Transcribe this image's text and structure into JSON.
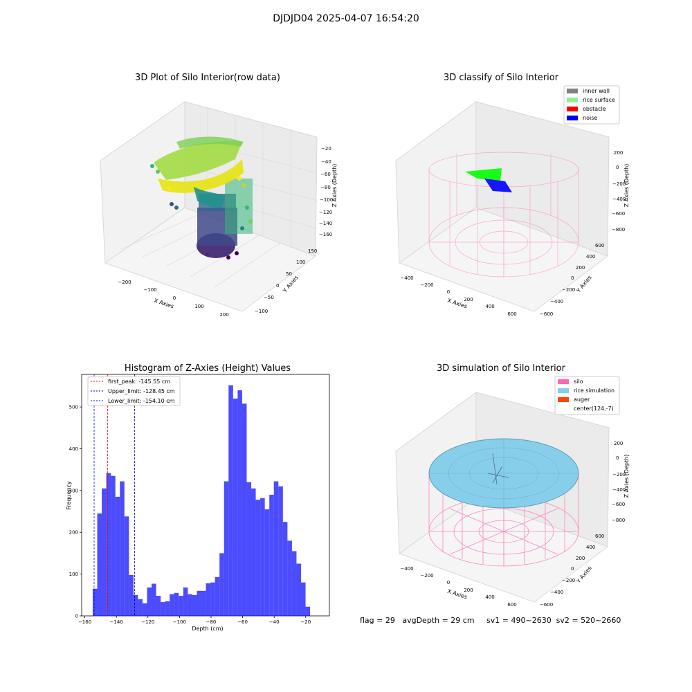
{
  "figure": {
    "suptitle": "DJDJD04 2025-04-07 16:54:20"
  },
  "panel_rowdata": {
    "title": "3D Plot of Silo Interior(row data)",
    "xlabel": "X Axies",
    "ylabel": "Y Axies",
    "zlabel": "Z Axies (Depth)",
    "xticks": [
      "−200",
      "−100",
      "0",
      "100",
      "200"
    ],
    "yticks": [
      "−100",
      "−50",
      "0",
      "50",
      "100",
      "150"
    ],
    "zticks": [
      "−20",
      "−40",
      "−60",
      "−80",
      "−100",
      "−120",
      "−140",
      "−160"
    ]
  },
  "panel_classify": {
    "title": "3D classify of Silo Interior",
    "xlabel": "X Axies",
    "ylabel": "Y Axies",
    "zlabel": "Z Axies (Depth)",
    "xticks": [
      "−400",
      "−200",
      "0",
      "200",
      "400",
      "600"
    ],
    "yticks": [
      "−600",
      "−400",
      "−200",
      "0",
      "200",
      "400",
      "600"
    ],
    "zticks": [
      "200",
      "0",
      "−200",
      "−400",
      "−600",
      "−800"
    ],
    "legend": [
      {
        "label": "inner wall",
        "color": "#808080"
      },
      {
        "label": "rice surface",
        "color": "#90ee90"
      },
      {
        "label": "obstacle",
        "color": "#ff0000"
      },
      {
        "label": "noise",
        "color": "#0000ff"
      }
    ]
  },
  "panel_simulation": {
    "title": "3D simulation of Silo Interior",
    "xlabel": "X Axies",
    "ylabel": "Y Axies",
    "zlabel": "Z Axies (Depth)",
    "xticks": [
      "−400",
      "−200",
      "0",
      "200",
      "400",
      "600"
    ],
    "yticks": [
      "−600",
      "−400",
      "−200",
      "0",
      "200",
      "400",
      "600"
    ],
    "zticks": [
      "200",
      "0",
      "−200",
      "−400",
      "−600",
      "−800"
    ],
    "legend": [
      {
        "label": "silo",
        "color": "#ff69b4"
      },
      {
        "label": "rice simulation",
        "color": "#87ceeb"
      },
      {
        "label": "auger",
        "color": "#ff4500"
      },
      {
        "label": "center(124,-7)",
        "color": "none"
      }
    ]
  },
  "status": {
    "text": "flag = 29   avgDepth = 29 cm     sv1 = 490~2630  sv2 = 520~2660"
  },
  "colors": {
    "bar": "#0000ff",
    "wire": "#ff69b4",
    "rice": "#87ceeb",
    "surface": "#00ff00",
    "noise": "#0000ff"
  },
  "chart_data": {
    "type": "bar",
    "title": "Histogram of Z-Axies (Height) Values",
    "xlabel": "Depth (cm)",
    "ylabel": "Frequency",
    "xlim": [
      -162,
      -5
    ],
    "ylim": [
      0,
      578
    ],
    "xticks": [
      -160,
      -140,
      -120,
      -100,
      -80,
      -60,
      -40,
      -20
    ],
    "yticks": [
      0,
      100,
      200,
      300,
      400,
      500
    ],
    "bin_start": -155.0,
    "bin_width": 2.87,
    "counts": [
      65,
      245,
      305,
      342,
      335,
      285,
      322,
      238,
      98,
      50,
      40,
      30,
      68,
      77,
      48,
      33,
      35,
      52,
      55,
      48,
      68,
      52,
      50,
      60,
      60,
      78,
      80,
      93,
      150,
      322,
      552,
      520,
      540,
      508,
      320,
      305,
      278,
      282,
      255,
      290,
      322,
      310,
      225,
      180,
      155,
      125,
      80,
      22
    ],
    "vlines": [
      {
        "name": "first_peak",
        "label": "first_peak: -145.55 cm",
        "x": -145.55,
        "color": "#ff0000"
      },
      {
        "name": "upper-limit",
        "label": "Upper_limit: -128.45 cm",
        "x": -128.45,
        "color": "#00008b"
      },
      {
        "name": "lower-limit",
        "label": "Lower_limit: -154.10 cm",
        "x": -154.1,
        "color": "#0000ff"
      }
    ]
  }
}
